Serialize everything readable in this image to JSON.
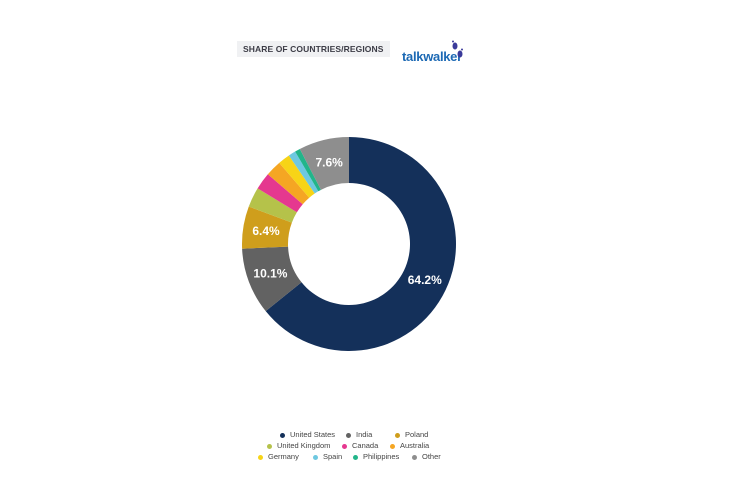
{
  "header": {
    "title": "SHARE OF COUNTRIES/REGIONS",
    "logo_text": "talkwalker"
  },
  "chart_data": {
    "type": "pie",
    "title": "SHARE OF COUNTRIES/REGIONS",
    "donut": true,
    "legend_position": "bottom",
    "categories": [
      "United States",
      "India",
      "Poland",
      "United Kingdom",
      "Canada",
      "Australia",
      "Germany",
      "Spain",
      "Philippines",
      "Other"
    ],
    "values": [
      64.2,
      10.1,
      6.4,
      3.0,
      2.6,
      2.4,
      1.8,
      1.1,
      0.8,
      7.6
    ],
    "labels": [
      "64.2%",
      "10.1%",
      "6.4%",
      "",
      "",
      "",
      "",
      "",
      "",
      "7.6%"
    ],
    "colors": [
      "#14305a",
      "#626262",
      "#cf9e1c",
      "#b5c24a",
      "#e5388f",
      "#f5a623",
      "#f7d417",
      "#6ec8e0",
      "#22b58a",
      "#8e8e8e"
    ]
  }
}
